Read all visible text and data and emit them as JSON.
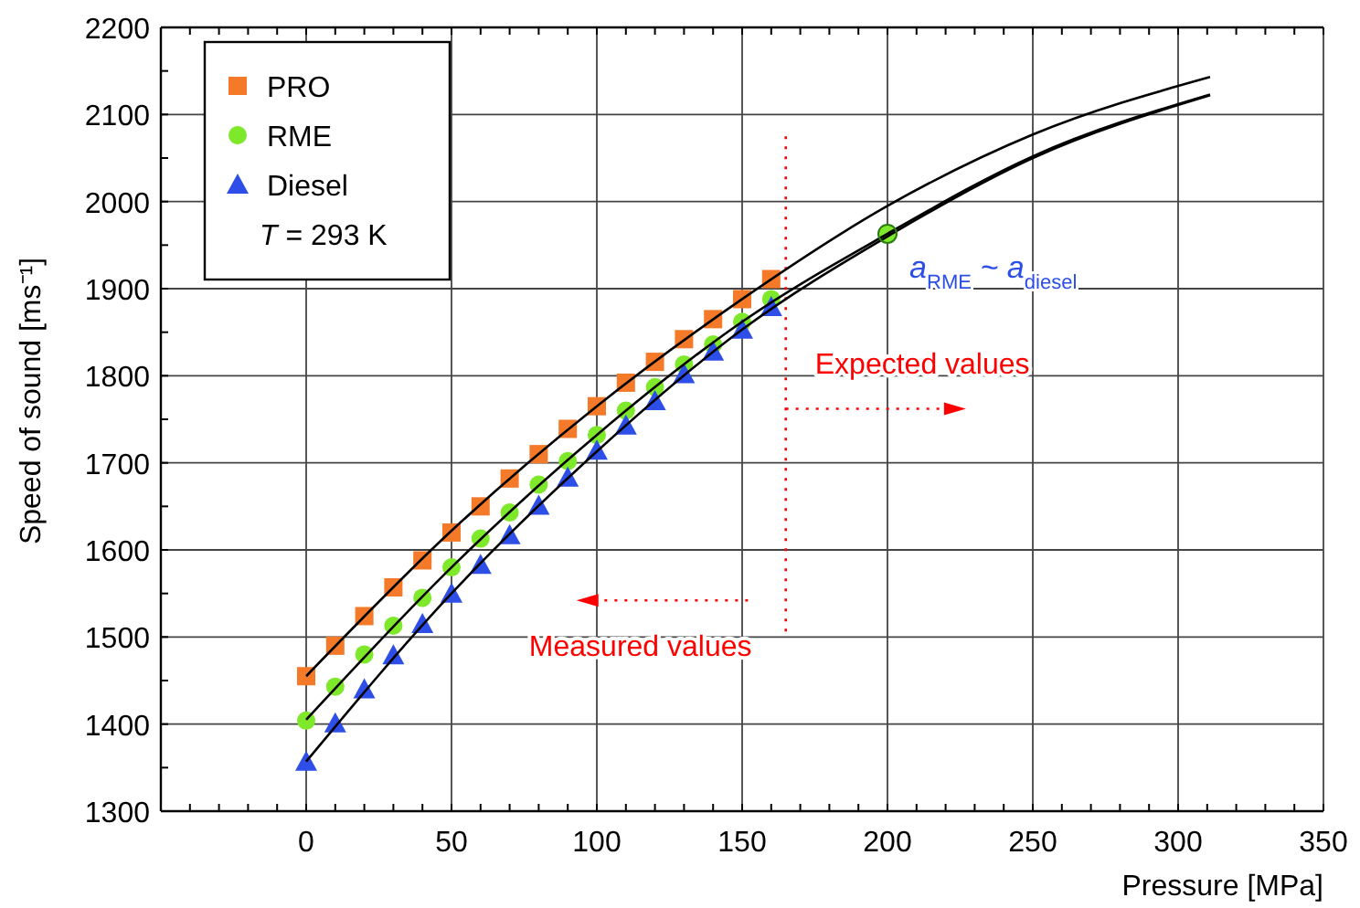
{
  "chart_data": {
    "type": "scatter",
    "xlabel": "Pressure [MPa]",
    "ylabel": "Speed of sound [ms⁻¹]",
    "xlim": [
      -50,
      350
    ],
    "xticks": [
      0,
      50,
      100,
      150,
      200,
      250,
      300,
      350
    ],
    "ylim": [
      1300,
      2200
    ],
    "yticks": [
      1300,
      1400,
      1500,
      1600,
      1700,
      1800,
      1900,
      2000,
      2100,
      2200
    ],
    "grid": true,
    "legend": "top left",
    "series": [
      {
        "name": "PRO",
        "color": "#f47a2a",
        "marker": "square",
        "x": [
          0,
          10,
          20,
          30,
          40,
          50,
          60,
          70,
          80,
          90,
          100,
          110,
          120,
          130,
          140,
          150,
          160
        ],
        "values": [
          1455,
          1490,
          1524,
          1557,
          1588,
          1620,
          1650,
          1682,
          1710,
          1739,
          1765,
          1792,
          1816,
          1842,
          1865,
          1888,
          1911
        ]
      },
      {
        "name": "RME",
        "color": "#7ee82a",
        "marker": "circle",
        "x": [
          0,
          10,
          20,
          30,
          40,
          50,
          60,
          70,
          80,
          90,
          100,
          110,
          120,
          130,
          140,
          150,
          160,
          200
        ],
        "values": [
          1404,
          1443,
          1480,
          1513,
          1545,
          1580,
          1613,
          1643,
          1675,
          1702,
          1732,
          1760,
          1787,
          1813,
          1836,
          1862,
          1888,
          1963
        ]
      },
      {
        "name": "Diesel",
        "color": "#2d4fe8",
        "marker": "triangle",
        "x": [
          0,
          10,
          20,
          30,
          40,
          50,
          60,
          70,
          80,
          90,
          100,
          110,
          120,
          130,
          140,
          150,
          160
        ],
        "values": [
          1357,
          1401,
          1440,
          1479,
          1515,
          1550,
          1583,
          1617,
          1651,
          1683,
          1714,
          1743,
          1771,
          1802,
          1828,
          1853,
          1879
        ]
      },
      {
        "type": "line",
        "color": "#000000",
        "marker": "none",
        "x": [
          0,
          50,
          100,
          150,
          200,
          250,
          311
        ],
        "values": [
          1455,
          1622,
          1765,
          1888,
          1995,
          2077,
          2143
        ]
      },
      {
        "type": "line",
        "color": "#000000",
        "marker": "none",
        "x": [
          0,
          50,
          100,
          150,
          200,
          250,
          311
        ],
        "values": [
          1405,
          1580,
          1732,
          1862,
          1963,
          2052,
          2123
        ]
      },
      {
        "type": "line",
        "color": "#000000",
        "marker": "none",
        "x": [
          0,
          50,
          100,
          150,
          200,
          250,
          311
        ],
        "values": [
          1357,
          1550,
          1713,
          1853,
          1960,
          2050,
          2122
        ]
      }
    ],
    "ref_lines": [
      {
        "axis": "x",
        "value": 165,
        "color": "#ff0000",
        "line_style": "dotted"
      }
    ],
    "annotations": [
      "T = 293 K",
      {
        "text": "a$_{RME}$ ~ a$_{diesel}$",
        "x": 200,
        "y": 1963
      },
      "Expected values",
      "Measured values"
    ]
  }
}
